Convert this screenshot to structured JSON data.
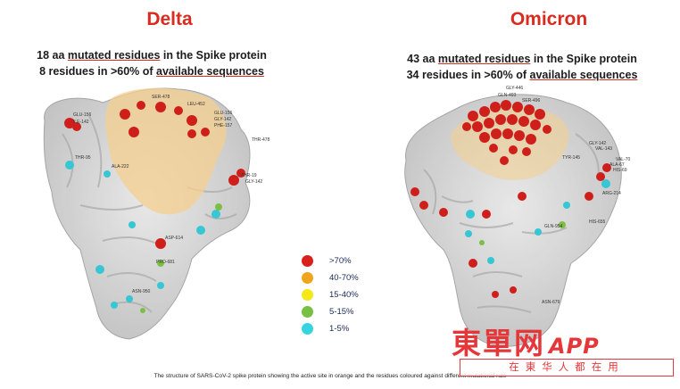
{
  "delta": {
    "title": "Delta",
    "line1_prefix": "18 aa ",
    "line1_underline": "mutated residues",
    "line1_suffix": " in the Spike protein",
    "line2_prefix": "8 residues in >60% of ",
    "line2_underline": "available sequences"
  },
  "omicron": {
    "title": "Omicron",
    "line1_prefix": "43 aa ",
    "line1_underline": "mutated residues",
    "line1_suffix": " in the Spike protein",
    "line2_prefix": "34 residues in >60% of ",
    "line2_underline": "available sequences"
  },
  "legend": [
    {
      "label": ">70%",
      "color": "#d9201b"
    },
    {
      "label": "40-70%",
      "color": "#f0a41e"
    },
    {
      "label": "15-40%",
      "color": "#f2e81a"
    },
    {
      "label": "5-15%",
      "color": "#78c043"
    },
    {
      "label": "1-5%",
      "color": "#36d4e0"
    }
  ],
  "caption": "The structure of SARS-CoV-2 spike protein showing the active site in orange and the residues coloured ag",
  "caption_end": "ainst different mutational rate",
  "watermark": {
    "text": "東單网",
    "app": "APP",
    "slogan": "在東华人都在用"
  },
  "delta_labels": [
    "GLU-156",
    "ILE-142",
    "THR-95",
    "ALA-222",
    "SER-478",
    "LEU-452",
    "GLU-156",
    "GLY-142",
    "PHE-157",
    "THR-478",
    "THR-19",
    "ASP-614",
    "PRO-681",
    "ASN-950",
    "GLY-142"
  ],
  "omicron_labels": [
    "GLY-446",
    "GLN-493",
    "SER-496",
    "GLY-142",
    "VAL-143",
    "TYR-145",
    "VAL-70",
    "ALA-67",
    "HIS-69",
    "ARG-214",
    "HIS-655",
    "GLN-954",
    "ASN-679"
  ]
}
